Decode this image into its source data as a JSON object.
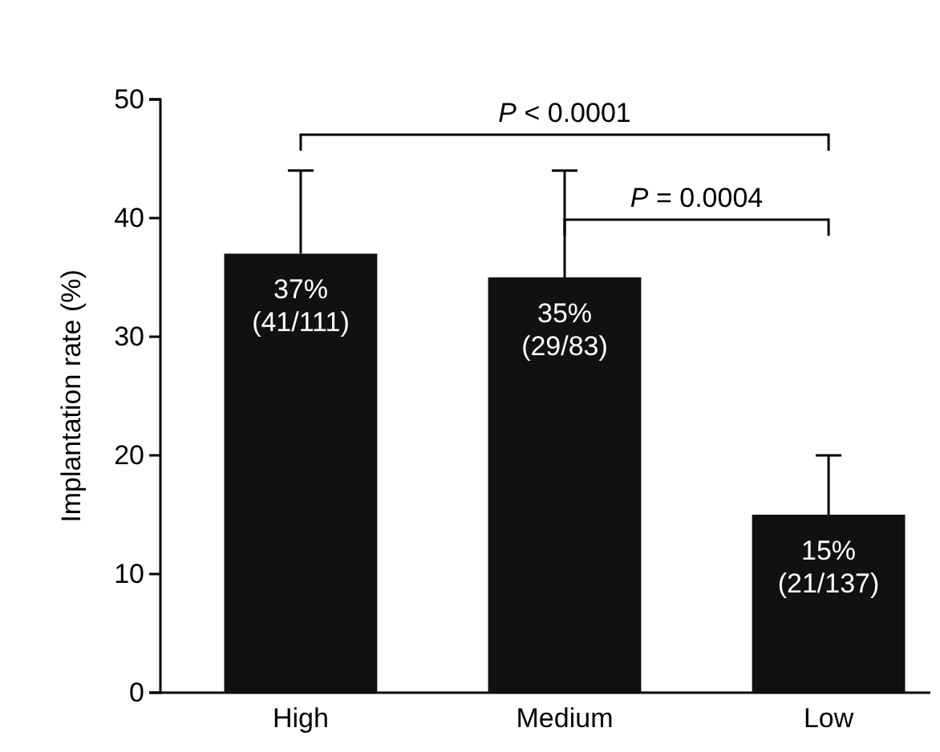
{
  "chart_data": {
    "type": "bar",
    "ylabel": "Implantation rate (%)",
    "categories": [
      "High",
      "Medium",
      "Low"
    ],
    "values": [
      37,
      35,
      15
    ],
    "color": "#111111",
    "errors": [
      [
        37,
        44
      ],
      [
        35,
        44
      ],
      [
        15,
        20
      ]
    ],
    "value_labels": [
      "37%\n(41/111)",
      "35%\n(29/83)",
      "15%\n(21/137)"
    ],
    "ylim": [
      0,
      50
    ],
    "yticks": [
      0,
      10,
      20,
      30,
      40,
      50
    ],
    "annotations": [
      "P < 0.0001",
      "P = 0.0004"
    ],
    "grid": false
  }
}
